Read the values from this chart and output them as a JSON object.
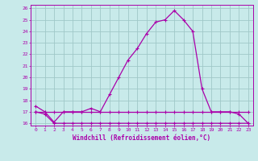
{
  "xlabel": "Windchill (Refroidissement éolien,°C)",
  "background_color": "#c8eaea",
  "grid_color": "#a0c8c8",
  "line_color": "#aa00aa",
  "x_labels": [
    "0",
    "1",
    "2",
    "3",
    "4",
    "5",
    "6",
    "7",
    "8",
    "9",
    "10",
    "11",
    "12",
    "13",
    "14",
    "15",
    "16",
    "17",
    "18",
    "19",
    "20",
    "21",
    "22",
    "23"
  ],
  "y_min": 16,
  "y_max": 26,
  "y_ticks": [
    16,
    17,
    18,
    19,
    20,
    21,
    22,
    23,
    24,
    25,
    26
  ],
  "series1": [
    17.5,
    17.0,
    16.1,
    17.0,
    17.0,
    17.0,
    17.3,
    17.0,
    18.5,
    20.0,
    21.5,
    22.5,
    23.8,
    24.8,
    25.0,
    25.8,
    25.0,
    24.0,
    19.0,
    17.0,
    17.0,
    17.0,
    16.8,
    16.0
  ],
  "series2": [
    17.0,
    16.8,
    16.0,
    16.0,
    16.0,
    16.0,
    16.0,
    16.0,
    16.0,
    16.0,
    16.0,
    16.0,
    16.0,
    16.0,
    16.0,
    16.0,
    16.0,
    16.0,
    16.0,
    16.0,
    16.0,
    16.0,
    16.0,
    16.0
  ],
  "series3": [
    17.0,
    17.0,
    17.0,
    17.0,
    17.0,
    17.0,
    17.0,
    17.0,
    17.0,
    17.0,
    17.0,
    17.0,
    17.0,
    17.0,
    17.0,
    17.0,
    17.0,
    17.0,
    17.0,
    17.0,
    17.0,
    17.0,
    17.0,
    17.0
  ]
}
